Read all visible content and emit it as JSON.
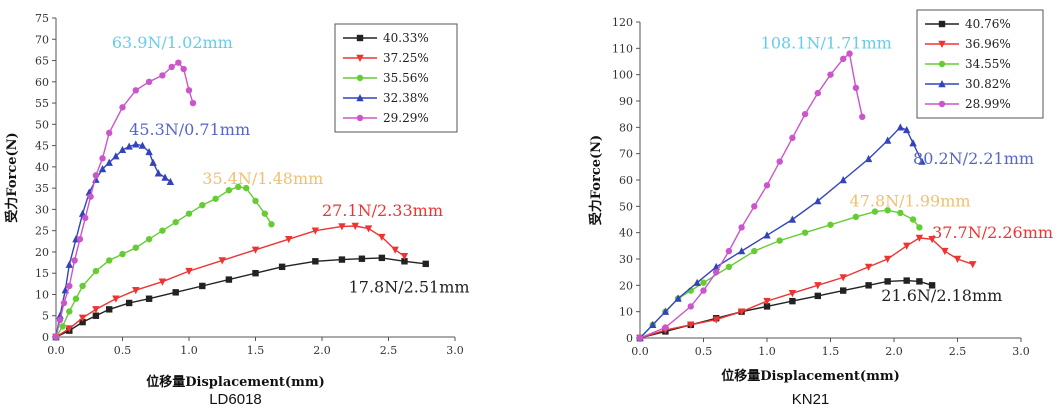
{
  "chart_data": [
    {
      "type": "line",
      "caption": "LD6018",
      "xlabel": "位移量Displacement(mm)",
      "ylabel": "受力Force(N)",
      "xlim": [
        0,
        3.0
      ],
      "ylim": [
        0,
        75
      ],
      "x_ticks": [
        0,
        0.5,
        1.0,
        1.5,
        2.0,
        2.5,
        3.0
      ],
      "x_tick_labels": [
        "0.0",
        "0.5",
        "1.0",
        "1.5",
        "2.0",
        "2.5",
        "3.0"
      ],
      "y_ticks": [
        0,
        5,
        10,
        15,
        20,
        25,
        30,
        35,
        40,
        45,
        50,
        55,
        60,
        65,
        70,
        75
      ],
      "y_tick_labels": [
        "0",
        "5",
        "10",
        "15",
        "20",
        "25",
        "30",
        "35",
        "40",
        "45",
        "50",
        "55",
        "60",
        "65",
        "70",
        "75"
      ],
      "legend_position": "top-right",
      "series": [
        {
          "name": "40.33%",
          "color": "#222222",
          "marker": "square",
          "x": [
            0,
            0.1,
            0.2,
            0.3,
            0.4,
            0.55,
            0.7,
            0.9,
            1.1,
            1.3,
            1.5,
            1.7,
            1.95,
            2.15,
            2.3,
            2.45,
            2.62,
            2.78
          ],
          "y": [
            0,
            1.5,
            3.5,
            5,
            6.5,
            8,
            9,
            10.5,
            12,
            13.5,
            15,
            16.5,
            17.8,
            18.2,
            18.4,
            18.6,
            17.8,
            17.2
          ]
        },
        {
          "name": "37.25%",
          "color": "#ee3333",
          "marker": "triangle-down",
          "x": [
            0,
            0.1,
            0.2,
            0.3,
            0.45,
            0.6,
            0.8,
            1.0,
            1.25,
            1.5,
            1.75,
            1.95,
            2.15,
            2.25,
            2.35,
            2.45,
            2.55,
            2.62
          ],
          "y": [
            0,
            2,
            4.5,
            6.5,
            9,
            11,
            13,
            15.5,
            18,
            20.5,
            23,
            25,
            26,
            26.1,
            25.5,
            23.5,
            20.5,
            19
          ]
        },
        {
          "name": "35.56%",
          "color": "#66cc33",
          "marker": "circle",
          "x": [
            0,
            0.05,
            0.1,
            0.15,
            0.2,
            0.3,
            0.4,
            0.5,
            0.6,
            0.7,
            0.8,
            0.9,
            1.0,
            1.1,
            1.2,
            1.3,
            1.37,
            1.43,
            1.5,
            1.57,
            1.62
          ],
          "y": [
            0,
            2.5,
            6,
            9,
            12,
            15.5,
            18,
            19.5,
            21,
            23,
            25,
            27,
            29,
            31,
            32.5,
            34.5,
            35.3,
            35,
            32,
            29,
            26.5
          ]
        },
        {
          "name": "32.38%",
          "color": "#3344bb",
          "marker": "triangle-up",
          "x": [
            0,
            0.03,
            0.07,
            0.1,
            0.15,
            0.2,
            0.25,
            0.3,
            0.35,
            0.4,
            0.45,
            0.5,
            0.55,
            0.6,
            0.65,
            0.7,
            0.73,
            0.77,
            0.82,
            0.86
          ],
          "y": [
            0,
            5,
            11,
            17,
            23,
            29,
            34,
            37,
            39.5,
            41,
            42.5,
            44,
            44.8,
            45.3,
            45,
            43.5,
            41,
            38.5,
            37.5,
            36.5
          ]
        },
        {
          "name": "29.29%",
          "color": "#cc55cc",
          "marker": "circle",
          "x": [
            0,
            0.03,
            0.06,
            0.1,
            0.14,
            0.18,
            0.22,
            0.26,
            0.3,
            0.35,
            0.4,
            0.5,
            0.6,
            0.7,
            0.8,
            0.87,
            0.92,
            0.96,
            1.0,
            1.03
          ],
          "y": [
            0,
            4,
            8,
            12,
            18,
            23,
            28,
            33,
            38,
            42,
            48,
            54,
            58,
            60,
            61.5,
            63.5,
            64.5,
            63,
            58,
            55
          ]
        }
      ],
      "annotations": [
        {
          "text": "63.9N/1.02mm",
          "color": "#66ccee",
          "x": 0.42,
          "y": 68
        },
        {
          "text": "45.3N/0.71mm",
          "color": "#5566cc",
          "x": 0.55,
          "y": 47.5
        },
        {
          "text": "35.4N/1.48mm",
          "color": "#f0c070",
          "x": 1.1,
          "y": 36
        },
        {
          "text": "27.1N/2.33mm",
          "color": "#ee3333",
          "x": 2.0,
          "y": 28.5
        },
        {
          "text": "17.8N/2.51mm",
          "color": "#222222",
          "x": 2.2,
          "y": 10.5
        }
      ]
    },
    {
      "type": "line",
      "caption": "KN21",
      "xlabel": "位移量Displacement(mm)",
      "ylabel": "受力Force(N)",
      "xlim": [
        0,
        3.0
      ],
      "ylim": [
        0,
        120
      ],
      "x_ticks": [
        0,
        0.5,
        1.0,
        1.5,
        2.0,
        2.5,
        3.0
      ],
      "x_tick_labels": [
        "0.0",
        "0.5",
        "1.0",
        "1.5",
        "2.0",
        "2.5",
        "3.0"
      ],
      "y_ticks": [
        0,
        10,
        20,
        30,
        40,
        50,
        60,
        70,
        80,
        90,
        100,
        110,
        120
      ],
      "y_tick_labels": [
        "0",
        "10",
        "20",
        "30",
        "40",
        "50",
        "60",
        "70",
        "80",
        "90",
        "100",
        "110",
        "120"
      ],
      "legend_position": "top-right",
      "series": [
        {
          "name": "40.76%",
          "color": "#222222",
          "marker": "square",
          "x": [
            0,
            0.2,
            0.4,
            0.6,
            0.8,
            1.0,
            1.2,
            1.4,
            1.6,
            1.8,
            1.95,
            2.1,
            2.2,
            2.3
          ],
          "y": [
            0,
            2.5,
            5,
            7.5,
            10,
            12,
            14,
            16,
            18,
            20,
            21.5,
            21.8,
            21.5,
            20
          ]
        },
        {
          "name": "36.96%",
          "color": "#ee3333",
          "marker": "triangle-down",
          "x": [
            0,
            0.2,
            0.4,
            0.6,
            0.8,
            1.0,
            1.2,
            1.4,
            1.6,
            1.8,
            1.95,
            2.1,
            2.2,
            2.3,
            2.4,
            2.5,
            2.62
          ],
          "y": [
            0,
            3,
            5,
            7,
            10,
            14,
            17,
            20,
            23,
            27,
            30,
            35,
            38,
            37.5,
            33,
            30,
            28
          ]
        },
        {
          "name": "34.55%",
          "color": "#66cc33",
          "marker": "circle",
          "x": [
            0,
            0.1,
            0.2,
            0.3,
            0.4,
            0.5,
            0.7,
            0.9,
            1.1,
            1.3,
            1.5,
            1.7,
            1.85,
            1.95,
            2.05,
            2.15,
            2.2
          ],
          "y": [
            0,
            5,
            10,
            15,
            18,
            21,
            27,
            33,
            37,
            40,
            43,
            46,
            48,
            48.5,
            47.5,
            45,
            42
          ]
        },
        {
          "name": "30.82%",
          "color": "#3344bb",
          "marker": "triangle-up",
          "x": [
            0,
            0.1,
            0.2,
            0.3,
            0.45,
            0.6,
            0.8,
            1.0,
            1.2,
            1.4,
            1.6,
            1.8,
            1.95,
            2.05,
            2.1,
            2.15,
            2.22
          ],
          "y": [
            0,
            5,
            10,
            15,
            21,
            27,
            33,
            39,
            45,
            52,
            60,
            68,
            75,
            80,
            79,
            74,
            67
          ]
        },
        {
          "name": "28.99%",
          "color": "#cc55cc",
          "marker": "circle",
          "x": [
            0,
            0.2,
            0.4,
            0.5,
            0.6,
            0.7,
            0.8,
            0.9,
            1.0,
            1.1,
            1.2,
            1.3,
            1.4,
            1.5,
            1.6,
            1.65,
            1.7,
            1.75
          ],
          "y": [
            0,
            4,
            12,
            18,
            25,
            33,
            42,
            50,
            58,
            67,
            76,
            85,
            93,
            100,
            106,
            108,
            95,
            84
          ]
        }
      ],
      "annotations": [
        {
          "text": "108.1N/1.71mm",
          "color": "#66ccee",
          "x": 0.95,
          "y": 110
        },
        {
          "text": "80.2N/2.21mm",
          "color": "#5566cc",
          "x": 2.15,
          "y": 66
        },
        {
          "text": "47.8N/1.99mm",
          "color": "#f0c070",
          "x": 1.65,
          "y": 50
        },
        {
          "text": "37.7N/2.26mm",
          "color": "#ee3333",
          "x": 2.3,
          "y": 38
        },
        {
          "text": "21.6N/2.18mm",
          "color": "#222222",
          "x": 1.9,
          "y": 14
        }
      ]
    }
  ]
}
